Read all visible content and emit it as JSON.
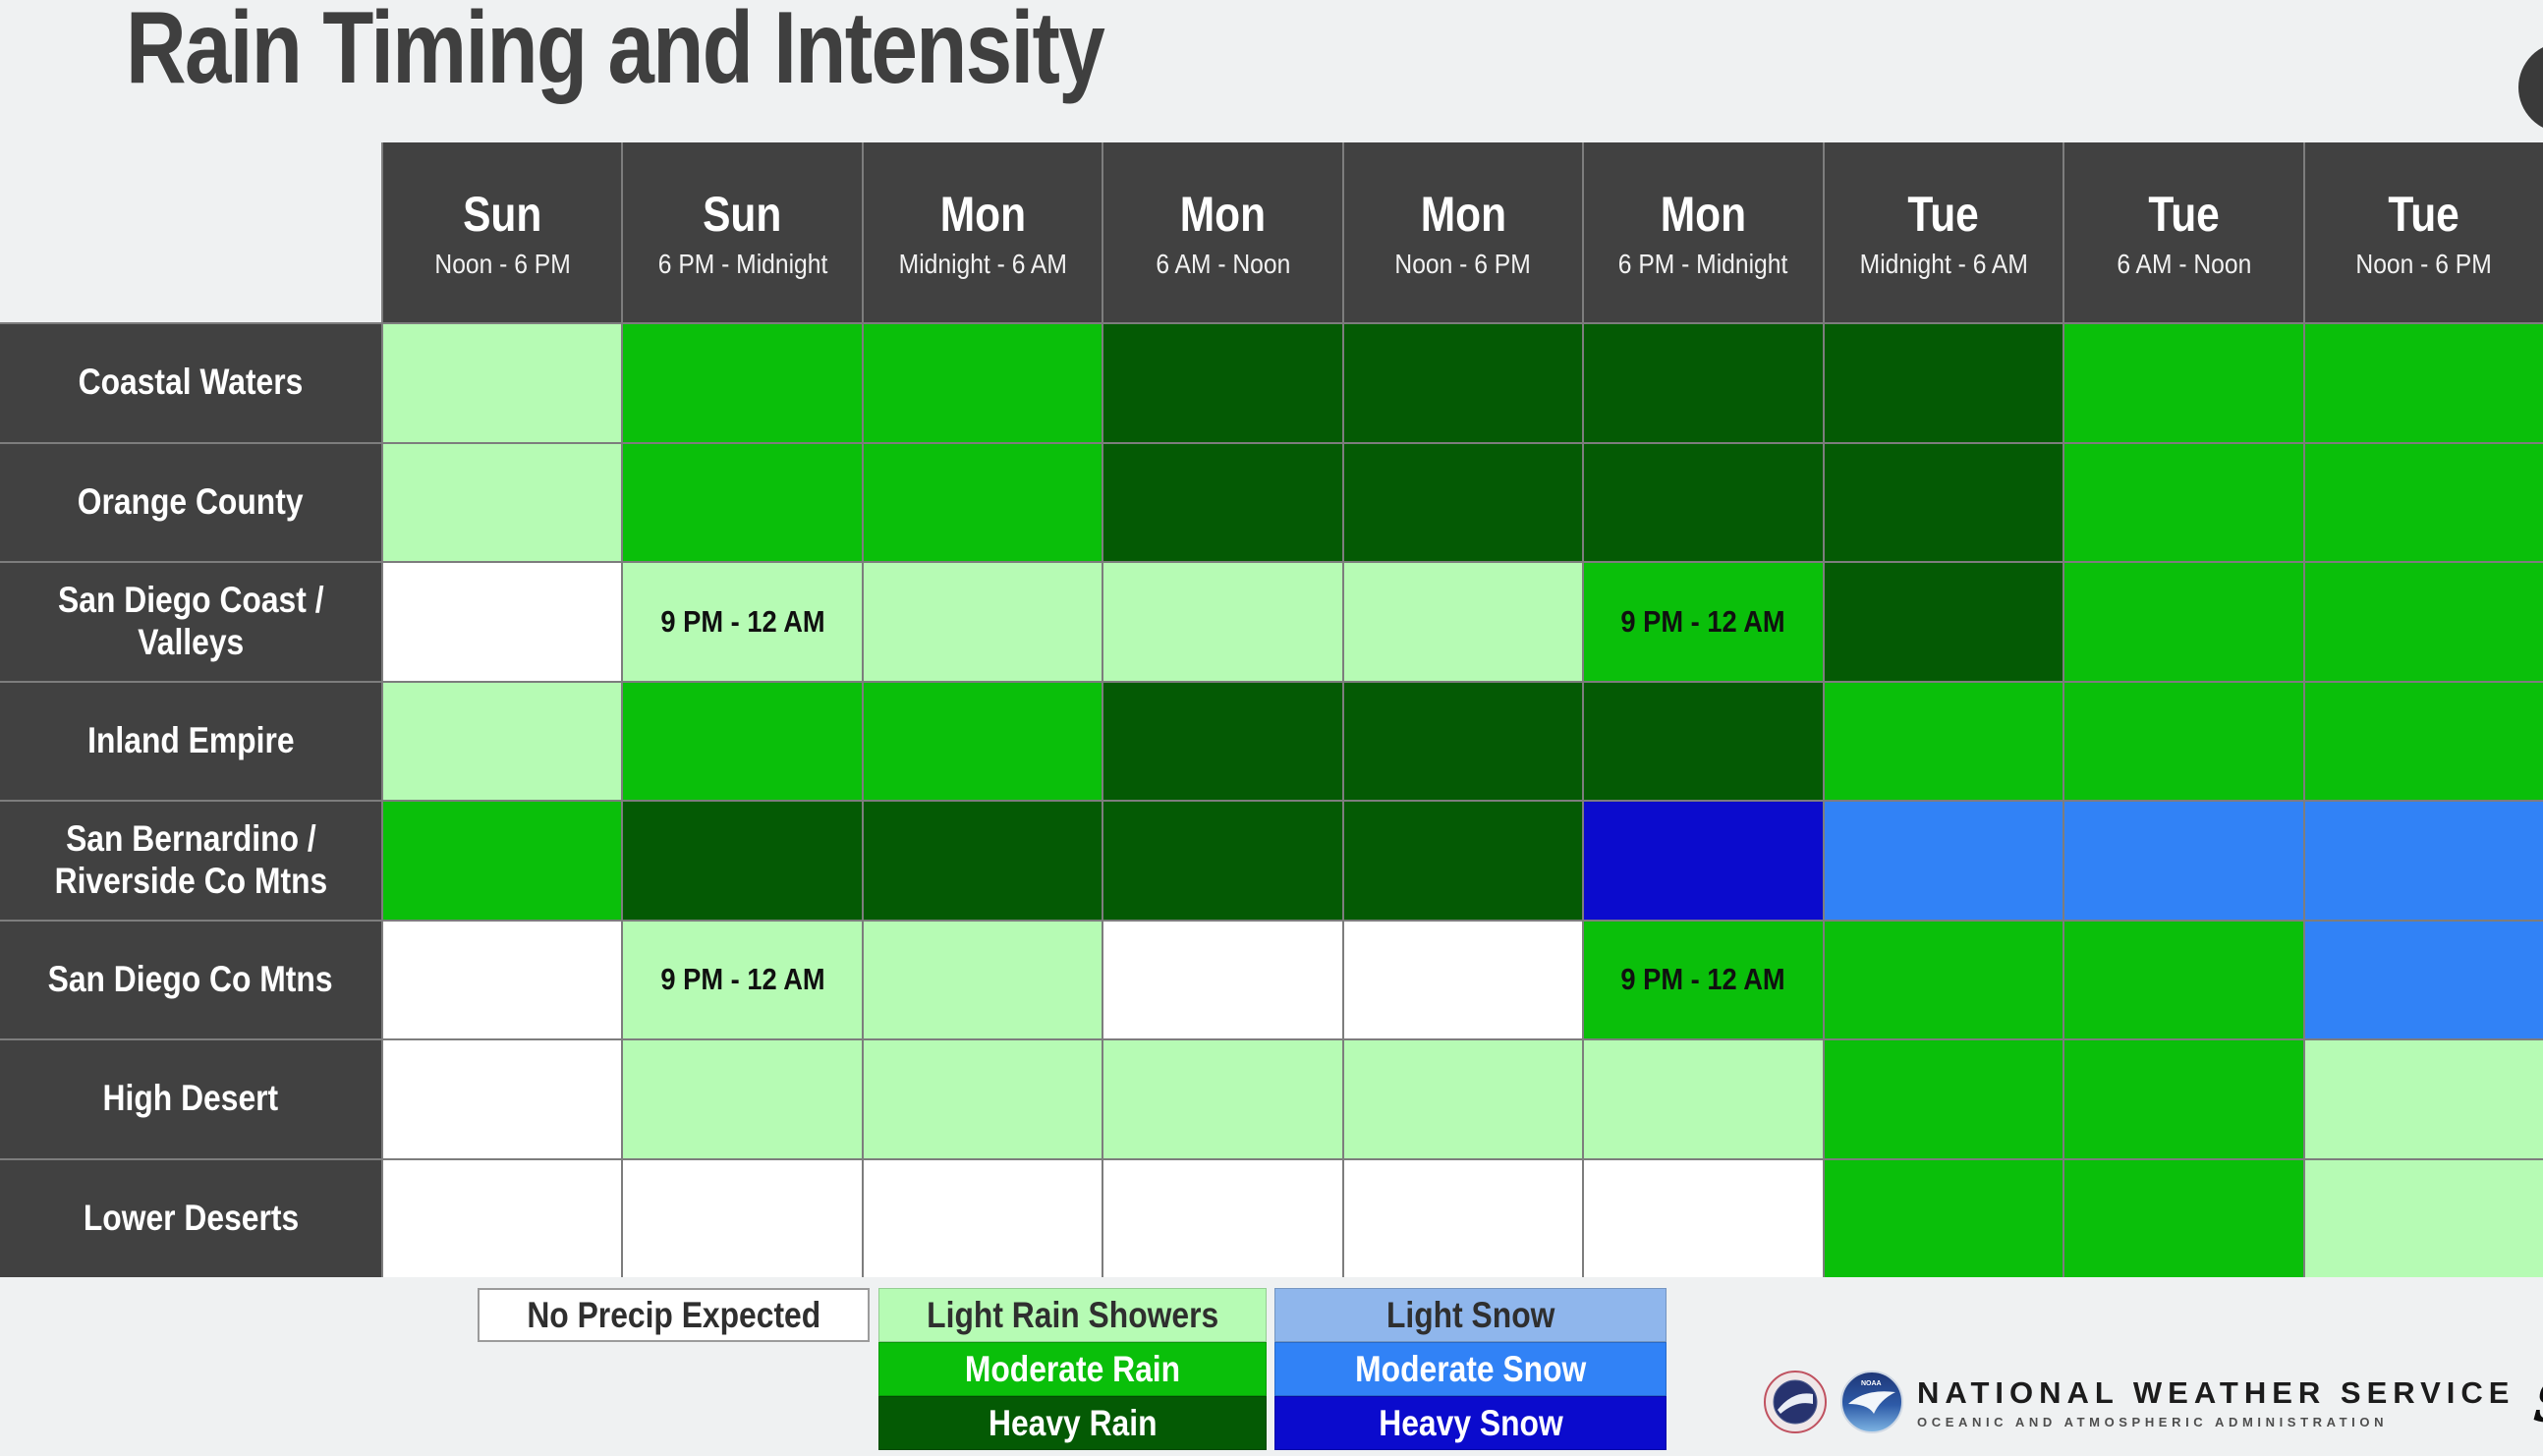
{
  "title": "Rain Timing and Intensity",
  "colors": {
    "background": "#eff1f2",
    "header_bg": "#414141",
    "header_text": "#ffffff",
    "grid_line": "#7d7d7d",
    "title_text": "#3f3f3f"
  },
  "chart_data": {
    "type": "heatmap",
    "title": "Rain Timing and Intensity",
    "columns": [
      {
        "day": "Sun",
        "time": "Noon - 6 PM"
      },
      {
        "day": "Sun",
        "time": "6 PM - Midnight"
      },
      {
        "day": "Mon",
        "time": "Midnight - 6 AM"
      },
      {
        "day": "Mon",
        "time": "6 AM - Noon"
      },
      {
        "day": "Mon",
        "time": "Noon - 6 PM"
      },
      {
        "day": "Mon",
        "time": "6 PM - Midnight"
      },
      {
        "day": "Tue",
        "time": "Midnight - 6 AM"
      },
      {
        "day": "Tue",
        "time": "6 AM - Noon"
      },
      {
        "day": "Tue",
        "time": "Noon - 6 PM"
      }
    ],
    "levels": {
      "none": {
        "label": "No Precip Expected",
        "color": "#ffffff",
        "text": "#2f2f2f"
      },
      "light": {
        "label": "Light Rain Showers",
        "color": "#b6fbb4",
        "text": "#2f2f2f"
      },
      "moderate": {
        "label": "Moderate Rain",
        "color": "#0abf0a",
        "text": "#ffffff"
      },
      "heavy": {
        "label": "Heavy Rain",
        "color": "#045a04",
        "text": "#ffffff"
      },
      "light_snow": {
        "label": "Light Snow",
        "color": "#8fb6ec",
        "text": "#2f2f2f"
      },
      "moderate_snow": {
        "label": "Moderate Snow",
        "color": "#3182f6",
        "text": "#ffffff"
      },
      "heavy_snow": {
        "label": "Heavy Snow",
        "color": "#0b0bcd",
        "text": "#ffffff"
      }
    },
    "rows": [
      {
        "region": "Coastal Waters",
        "cells": [
          "light",
          "moderate",
          "moderate",
          "heavy",
          "heavy",
          "heavy",
          "heavy",
          "moderate",
          "moderate"
        ]
      },
      {
        "region": "Orange County",
        "cells": [
          "light",
          "moderate",
          "moderate",
          "heavy",
          "heavy",
          "heavy",
          "heavy",
          "moderate",
          "moderate"
        ]
      },
      {
        "region": "San Diego Coast / Valleys",
        "region_lines": [
          "San Diego Coast /",
          "Valleys"
        ],
        "cells": [
          "none",
          {
            "v": "light",
            "note": "9 PM - 12 AM"
          },
          "light",
          "light",
          "light",
          {
            "v": "moderate",
            "note": "9 PM - 12 AM"
          },
          "heavy",
          "moderate",
          "moderate"
        ]
      },
      {
        "region": "Inland Empire",
        "cells": [
          "light",
          "moderate",
          "moderate",
          "heavy",
          "heavy",
          "heavy",
          "moderate",
          "moderate",
          "moderate"
        ]
      },
      {
        "region": "San Bernardino / Riverside Co Mtns",
        "region_lines": [
          "San Bernardino /",
          "Riverside Co Mtns"
        ],
        "cells": [
          "moderate",
          "heavy",
          "heavy",
          "heavy",
          "heavy",
          "heavy_snow",
          "moderate_snow",
          "moderate_snow",
          "moderate_snow"
        ]
      },
      {
        "region": "San Diego Co Mtns",
        "cells": [
          "none",
          {
            "v": "light",
            "note": "9 PM - 12 AM"
          },
          "light",
          "none",
          "none",
          {
            "v": "moderate",
            "note": "9 PM - 12 AM"
          },
          "moderate",
          "moderate",
          "moderate_snow"
        ]
      },
      {
        "region": "High Desert",
        "cells": [
          "none",
          "light",
          "light",
          "light",
          "light",
          "light",
          "moderate",
          "moderate",
          "light"
        ]
      },
      {
        "region": "Lower Deserts",
        "cells": [
          "none",
          "none",
          "none",
          "none",
          "none",
          "none",
          "moderate",
          "moderate",
          "light"
        ]
      }
    ],
    "legend": {
      "col1": [
        "none"
      ],
      "col2": [
        "light",
        "moderate",
        "heavy"
      ],
      "col3": [
        "light_snow",
        "moderate_snow",
        "heavy_snow"
      ]
    },
    "legend_position": "bottom"
  },
  "branding": {
    "agency": "NATIONAL WEATHER SERVICE",
    "sub": "OCEANIC AND ATMOSPHERIC ADMINISTRATION",
    "office": "San Diego",
    "logos": [
      "nws-seal-icon",
      "noaa-seal-icon"
    ]
  }
}
